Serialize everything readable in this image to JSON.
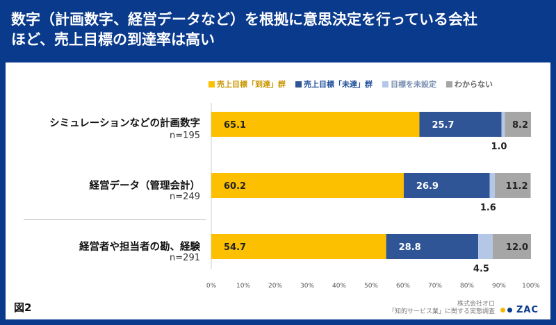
{
  "title": {
    "line1": "数字（計画数字、経営データなど）を根拠に意思決定を行っている会社",
    "line2": "ほど、売上目標の到達率は高い"
  },
  "figure_label": "図2",
  "source": {
    "line1": "株式会社オロ",
    "line2": "「知的サービス業」に関する実態調査"
  },
  "logo": {
    "text": "ZAC",
    "dot_colors": [
      "#f5b800",
      "#0a3a8c"
    ]
  },
  "colors": {
    "reached": "#fcc000",
    "not_reached": "#2f5597",
    "no_target": "#b4c7e7",
    "unknown": "#a6a6a6",
    "reached_legend_text": "#c89600",
    "not_reached_legend_text": "#1f4e9a",
    "no_target_legend_text": "#7a8fb0",
    "unknown_legend_text": "#666666"
  },
  "chart_data": {
    "type": "bar",
    "orientation": "horizontal",
    "stacked": true,
    "categories": [
      {
        "label": "シミュレーションなどの計画数字",
        "n": "n=195"
      },
      {
        "label": "経営データ（管理会計）",
        "n": "n=249"
      },
      {
        "label": "経営者や担当者の勘、経験",
        "n": "n=291"
      }
    ],
    "series": [
      {
        "name": "売上目標「到達」群",
        "values": [
          65.1,
          60.2,
          54.7
        ]
      },
      {
        "name": "売上目標「未達」群",
        "values": [
          25.7,
          26.9,
          28.8
        ]
      },
      {
        "name": "目標を未設定",
        "values": [
          1.0,
          1.6,
          4.5
        ]
      },
      {
        "name": "わからない",
        "values": [
          8.2,
          11.2,
          12.0
        ]
      }
    ],
    "xlim": [
      0,
      100
    ],
    "xticks": [
      "0%",
      "10%",
      "20%",
      "30%",
      "40%",
      "50%",
      "60%",
      "70%",
      "80%",
      "90%",
      "100%"
    ],
    "legend_position": "top"
  }
}
